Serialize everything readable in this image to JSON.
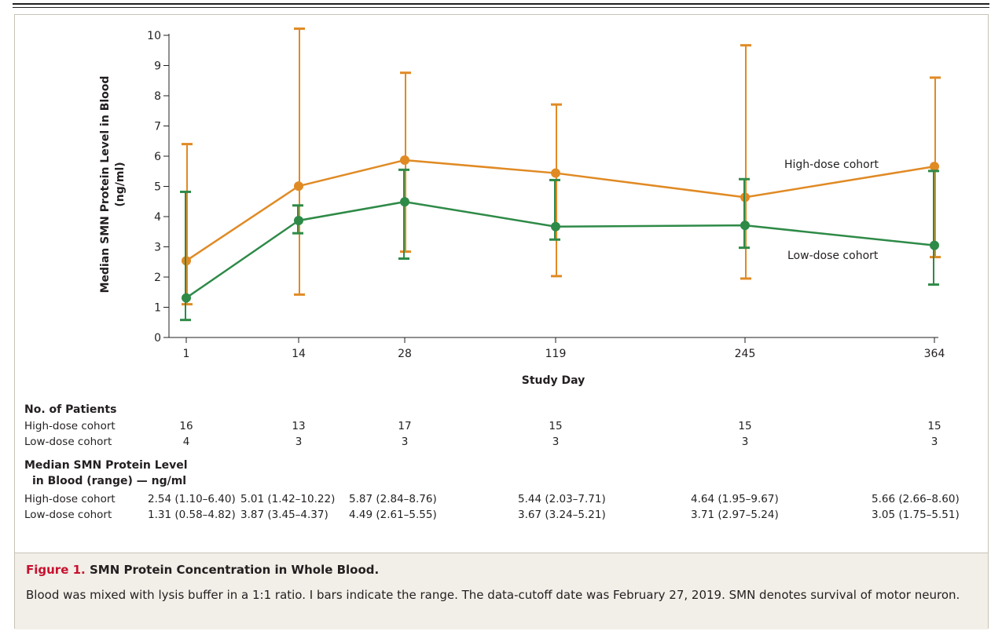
{
  "chart_data": {
    "type": "line",
    "x": [
      "1",
      "14",
      "28",
      "119",
      "245",
      "364"
    ],
    "xlabel": "Study Day",
    "ylabel_line1": "Median SMN Protein Level in Blood",
    "ylabel_line2": "(ng/ml)",
    "ylim": [
      0,
      10
    ],
    "yticks": [
      "0",
      "1",
      "2",
      "3",
      "4",
      "5",
      "6",
      "7",
      "8",
      "9",
      "10"
    ],
    "series": [
      {
        "name": "High-dose cohort",
        "color": "#e08a24",
        "values": [
          2.54,
          5.01,
          5.87,
          5.44,
          4.64,
          5.66
        ],
        "low": [
          1.1,
          1.42,
          2.84,
          2.03,
          1.95,
          2.66
        ],
        "high": [
          6.4,
          10.22,
          8.76,
          7.71,
          9.67,
          8.6
        ]
      },
      {
        "name": "Low-dose cohort",
        "color": "#2e8a47",
        "values": [
          1.31,
          3.87,
          4.49,
          3.67,
          3.71,
          3.05
        ],
        "low": [
          0.58,
          3.45,
          2.61,
          3.24,
          2.97,
          1.75
        ],
        "high": [
          4.82,
          4.37,
          5.55,
          5.21,
          5.24,
          5.51
        ]
      }
    ],
    "grid": false
  },
  "patients_table": {
    "heading": "No. of Patients",
    "rows": [
      {
        "label": "High-dose cohort",
        "values": [
          "16",
          "13",
          "17",
          "15",
          "15",
          "15"
        ]
      },
      {
        "label": "Low-dose cohort",
        "values": [
          "4",
          "3",
          "3",
          "3",
          "3",
          "3"
        ]
      }
    ]
  },
  "median_table": {
    "heading_line1": "Median SMN Protein Level",
    "heading_line2": "in Blood (range) — ng/ml",
    "rows": [
      {
        "label": "High-dose cohort",
        "values": [
          "2.54 (1.10–6.40)",
          "5.01 (1.42–10.22)",
          "5.87 (2.84–8.76)",
          "5.44 (2.03–7.71)",
          "4.64 (1.95–9.67)",
          "5.66 (2.66–8.60)"
        ]
      },
      {
        "label": "Low-dose cohort",
        "values": [
          "1.31 (0.58–4.82)",
          "3.87 (3.45–4.37)",
          "4.49 (2.61–5.55)",
          "3.67 (3.24–5.21)",
          "3.71 (2.97–5.24)",
          "3.05 (1.75–5.51)"
        ]
      }
    ]
  },
  "caption": {
    "figure_label": "Figure 1.",
    "title": "SMN Protein Concentration in Whole Blood.",
    "body": "Blood was mixed with lysis buffer in a 1:1 ratio. I bars indicate the range. The data-cutoff date was February 27, 2019. SMN denotes survival of motor neuron."
  }
}
